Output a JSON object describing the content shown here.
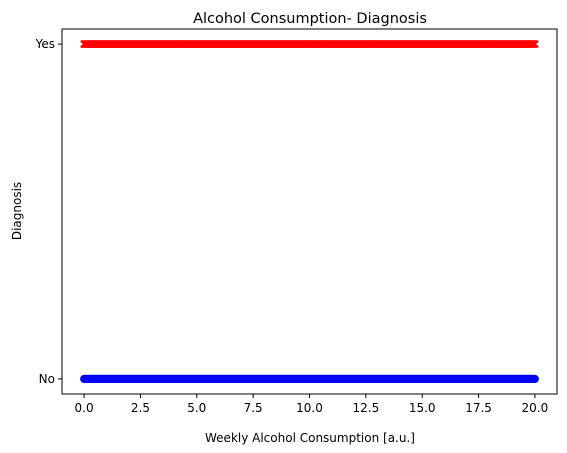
{
  "chart_data": {
    "type": "scatter",
    "title": "Alcohol Consumption- Diagnosis",
    "xlabel": "Weekly Alcohol Consumption [a.u.]",
    "ylabel": "Diagnosis",
    "xlim": [
      -0.98,
      20.98
    ],
    "ylim": [
      -0.045,
      1.045
    ],
    "x_ticks": [
      0,
      2.5,
      5,
      7.5,
      10,
      12.5,
      15,
      17.5,
      20
    ],
    "x_tick_labels": [
      "0.0",
      "2.5",
      "5.0",
      "7.5",
      "10.0",
      "12.5",
      "15.0",
      "17.5",
      "20.0"
    ],
    "y_ticks": [
      0,
      1
    ],
    "y_tick_labels": [
      "No",
      "Yes"
    ],
    "grid": false,
    "series": [
      {
        "y": 1,
        "marker": "x",
        "color": "#ff0000",
        "x_range": [
          0,
          20
        ],
        "count": 800
      },
      {
        "y": 0,
        "marker": "o",
        "color": "#0000ff",
        "x_range": [
          0,
          20
        ],
        "count": 1200
      }
    ]
  }
}
